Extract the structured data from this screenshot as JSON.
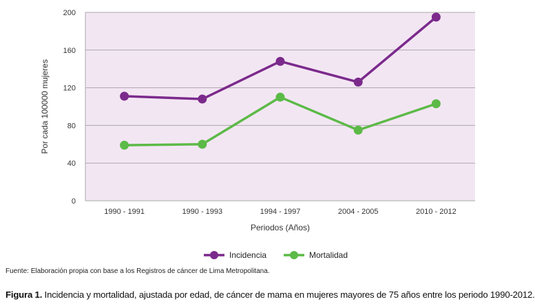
{
  "chart_data": {
    "type": "line",
    "categories": [
      "1990 - 1991",
      "1990 - 1993",
      "1994 - 1997",
      "2004 - 2005",
      "2010 - 2012"
    ],
    "series": [
      {
        "name": "Incidencia",
        "values": [
          111,
          108,
          148,
          126,
          195
        ],
        "color": "#7b2a8c"
      },
      {
        "name": "Mortalidad",
        "values": [
          59,
          60,
          110,
          75,
          103
        ],
        "color": "#5cba47"
      }
    ],
    "xlabel": "Periodos (Años)",
    "ylabel": "Por cada 100000 mujeres",
    "ylim": [
      0,
      200
    ],
    "yticks": [
      0,
      40,
      80,
      120,
      160,
      200
    ],
    "grid": true,
    "legend": "bottom-center",
    "plot_background": "#f3e6f3"
  },
  "source_note": "Fuente: Elaboración propia con base a los Registros de cáncer de Lima Metropolitana.",
  "caption": {
    "label": "Figura 1.",
    "text": " Incidencia y mortalidad, ajustada por edad, de cáncer de mama en mujeres mayores de 75 años entre los periodo 1990-2012."
  }
}
